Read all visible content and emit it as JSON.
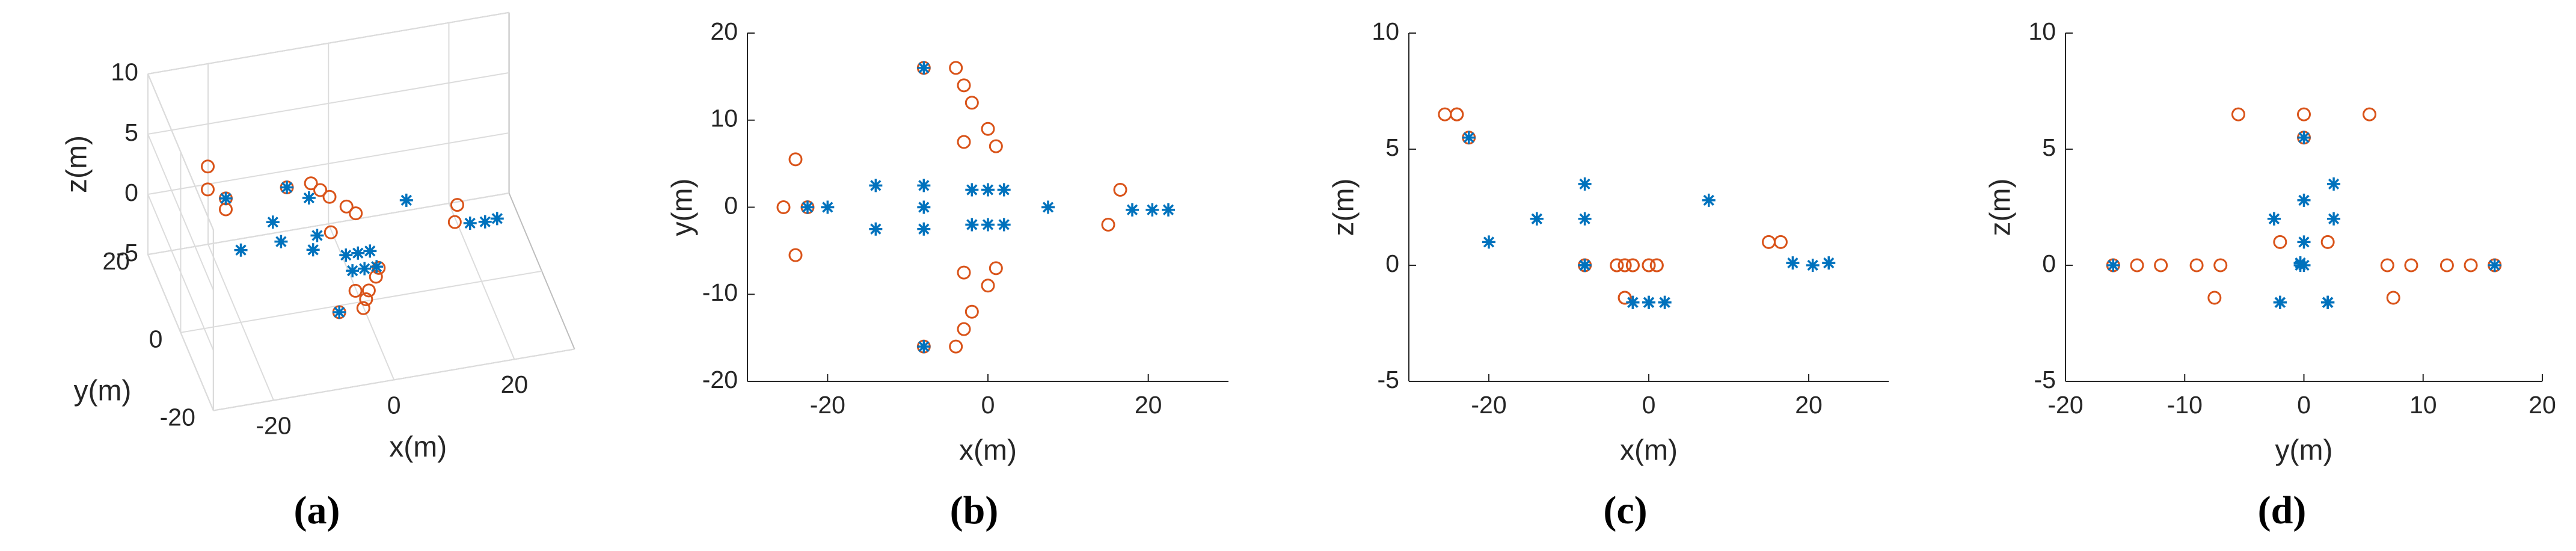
{
  "chart_data": [
    {
      "type": "scatter3d",
      "label": "(a)",
      "xlabel": "x(m)",
      "ylabel": "y(m)",
      "zlabel": "z(m)",
      "xlim": [
        -30,
        30
      ],
      "ylim": [
        -20,
        20
      ],
      "zlim": [
        -5,
        10
      ],
      "xticks": [
        -20,
        0,
        20
      ],
      "yticks": [
        -20,
        0,
        20
      ],
      "zticks": [
        -5,
        0,
        5,
        10
      ],
      "grid": true,
      "series": [
        {
          "color": "#d95319",
          "marker": "circle",
          "x": [
            -25.5,
            -24,
            -24,
            -22.5,
            -8,
            -4,
            -3,
            -2,
            0,
            1,
            -8,
            -4,
            -3,
            -2,
            0,
            1,
            -3,
            -3,
            15,
            16.5
          ],
          "y": [
            0,
            5.5,
            -5.5,
            0,
            16,
            16,
            14,
            12,
            9,
            7,
            -16,
            -16,
            -14,
            -12,
            -9,
            -7,
            7.5,
            -7.5,
            -2,
            2
          ],
          "z": [
            6.5,
            6.5,
            6.5,
            5.5,
            0,
            0,
            0,
            0,
            0,
            0,
            0,
            0,
            0,
            0,
            0,
            0,
            -1.4,
            -1.4,
            1,
            1
          ]
        },
        {
          "color": "#0072bd",
          "marker": "star",
          "x": [
            -22.5,
            -20,
            -14,
            -14,
            -8,
            -8,
            -8,
            -8,
            -8,
            -2,
            -2,
            0,
            0,
            2,
            2,
            7.5,
            18,
            20.5,
            22.5
          ],
          "y": [
            0,
            0,
            2.5,
            -2.5,
            2.5,
            -2.5,
            0,
            16,
            -16,
            2,
            -2,
            2,
            -2,
            2,
            -2,
            0,
            -0.3,
            -0.3,
            -0.3
          ],
          "z": [
            5.5,
            1,
            2,
            2,
            3.5,
            2,
            0,
            0,
            0,
            -1.6,
            -1.6,
            -1.6,
            -1.6,
            -1.6,
            -1.6,
            2.8,
            0.1,
            0,
            0.1
          ]
        }
      ]
    },
    {
      "type": "scatter",
      "label": "(b)",
      "xlabel": "x(m)",
      "ylabel": "y(m)",
      "xlim": [
        -30,
        30
      ],
      "ylim": [
        -20,
        20
      ],
      "xticks": [
        -20,
        0,
        20
      ],
      "yticks": [
        -20,
        -10,
        0,
        10,
        20
      ],
      "series": [
        {
          "color": "#d95319",
          "marker": "circle",
          "x": [
            -25.5,
            -24,
            -24,
            -22.5,
            -8,
            -4,
            -3,
            -2,
            0,
            1,
            -8,
            -4,
            -3,
            -2,
            0,
            1,
            -3,
            -3,
            15,
            16.5
          ],
          "y": [
            0,
            5.5,
            -5.5,
            0,
            16,
            16,
            14,
            12,
            9,
            7,
            -16,
            -16,
            -14,
            -12,
            -9,
            -7,
            7.5,
            -7.5,
            -2,
            2
          ]
        },
        {
          "color": "#0072bd",
          "marker": "star",
          "x": [
            -22.5,
            -20,
            -14,
            -14,
            -8,
            -8,
            -8,
            -8,
            -8,
            -2,
            -2,
            0,
            0,
            2,
            2,
            7.5,
            18,
            20.5,
            22.5
          ],
          "y": [
            0,
            0,
            2.5,
            -2.5,
            2.5,
            -2.5,
            0,
            16,
            -16,
            2,
            -2,
            2,
            -2,
            2,
            -2,
            0,
            -0.3,
            -0.3,
            -0.3
          ]
        }
      ]
    },
    {
      "type": "scatter",
      "label": "(c)",
      "xlabel": "x(m)",
      "ylabel": "z(m)",
      "xlim": [
        -30,
        30
      ],
      "ylim": [
        -5,
        10
      ],
      "xticks": [
        -20,
        0,
        20
      ],
      "yticks": [
        -5,
        0,
        5,
        10
      ],
      "series": [
        {
          "color": "#d95319",
          "marker": "circle",
          "x": [
            -25.5,
            -24,
            -24,
            -22.5,
            -8,
            -4,
            -3,
            -2,
            0,
            1,
            -8,
            -4,
            -3,
            -2,
            0,
            1,
            -3,
            -3,
            15,
            16.5
          ],
          "y": [
            6.5,
            6.5,
            6.5,
            5.5,
            0,
            0,
            0,
            0,
            0,
            0,
            0,
            0,
            0,
            0,
            0,
            0,
            -1.4,
            -1.4,
            1,
            1
          ]
        },
        {
          "color": "#0072bd",
          "marker": "star",
          "x": [
            -22.5,
            -20,
            -14,
            -14,
            -8,
            -8,
            -8,
            -8,
            -8,
            -2,
            -2,
            0,
            0,
            2,
            2,
            7.5,
            18,
            20.5,
            22.5
          ],
          "y": [
            5.5,
            1,
            2,
            2,
            3.5,
            2,
            0,
            0,
            0,
            -1.6,
            -1.6,
            -1.6,
            -1.6,
            -1.6,
            -1.6,
            2.8,
            0.1,
            0,
            0.1
          ]
        }
      ]
    },
    {
      "type": "scatter",
      "label": "(d)",
      "xlabel": "y(m)",
      "ylabel": "z(m)",
      "xlim": [
        -20,
        20
      ],
      "ylim": [
        -5,
        10
      ],
      "xticks": [
        -20,
        -10,
        0,
        10,
        20
      ],
      "yticks": [
        -5,
        0,
        5,
        10
      ],
      "series": [
        {
          "color": "#d95319",
          "marker": "circle",
          "x": [
            0,
            5.5,
            -5.5,
            0,
            16,
            16,
            14,
            12,
            9,
            7,
            -16,
            -16,
            -14,
            -12,
            -9,
            -7,
            7.5,
            -7.5,
            -2,
            2
          ],
          "y": [
            6.5,
            6.5,
            6.5,
            5.5,
            0,
            0,
            0,
            0,
            0,
            0,
            0,
            0,
            0,
            0,
            0,
            0,
            -1.4,
            -1.4,
            1,
            1
          ]
        },
        {
          "color": "#0072bd",
          "marker": "star",
          "x": [
            0,
            0,
            2.5,
            -2.5,
            2.5,
            -2.5,
            0,
            16,
            -16,
            2,
            -2,
            2,
            -2,
            2,
            -2,
            0,
            -0.3,
            -0.3,
            -0.3
          ],
          "y": [
            5.5,
            1,
            2,
            2,
            3.5,
            2,
            0,
            0,
            0,
            -1.6,
            -1.6,
            -1.6,
            -1.6,
            -1.6,
            -1.6,
            2.8,
            0.1,
            0,
            0.1
          ]
        }
      ]
    }
  ]
}
